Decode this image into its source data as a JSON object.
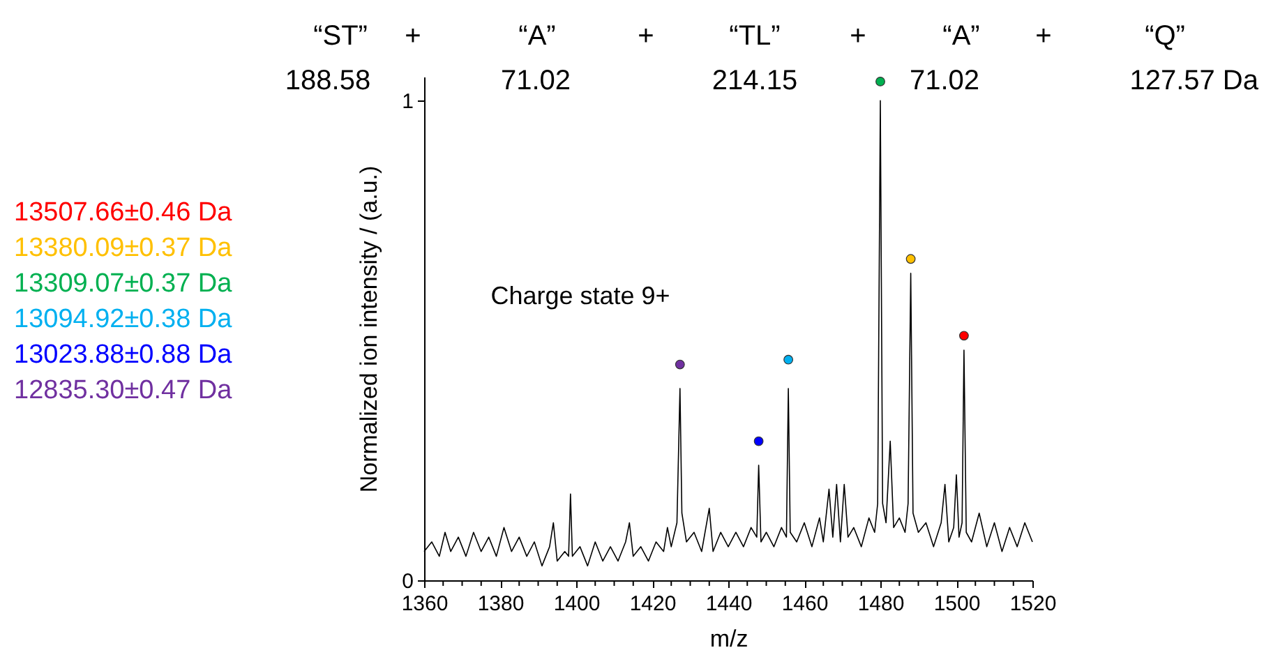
{
  "chart_data": {
    "type": "line",
    "xlabel": "m/z",
    "ylabel": "Normalized ion intensity / (a.u.)",
    "xlim": [
      1360,
      1520
    ],
    "xticks": [
      1360,
      {
        "value": 1365,
        "label": null
      },
      {
        "value": 1370,
        "label": null
      },
      {
        "value": 1375,
        "label": null
      },
      1380,
      {
        "value": 1385,
        "label": null
      },
      {
        "value": 1390,
        "label": null
      },
      {
        "value": 1395,
        "label": null
      },
      1400,
      {
        "value": 1405,
        "label": null
      },
      {
        "value": 1410,
        "label": null
      },
      {
        "value": 1415,
        "label": null
      },
      1420,
      {
        "value": 1425,
        "label": null
      },
      {
        "value": 1430,
        "label": null
      },
      {
        "value": 1435,
        "label": null
      },
      1440,
      {
        "value": 1445,
        "label": null
      },
      {
        "value": 1450,
        "label": null
      },
      {
        "value": 1455,
        "label": null
      },
      1460,
      {
        "value": 1465,
        "label": null
      },
      {
        "value": 1470,
        "label": null
      },
      {
        "value": 1475,
        "label": null
      },
      1480,
      {
        "value": 1485,
        "label": null
      },
      {
        "value": 1490,
        "label": null
      },
      {
        "value": 1495,
        "label": null
      },
      1500,
      {
        "value": 1505,
        "label": null
      },
      {
        "value": 1510,
        "label": null
      },
      {
        "value": 1515,
        "label": null
      },
      1520
    ],
    "ylim": [
      0,
      1.05
    ],
    "yticks": [
      0,
      1
    ],
    "legend": "left",
    "annotations": [
      "Charge state 9+",
      "“ST”",
      "+",
      "“A”",
      "+",
      "“TL”",
      "+",
      "“A”",
      "+",
      "“Q”",
      "188.58",
      "71.02",
      "214.15",
      "71.02",
      "127.57 Da"
    ],
    "series": [
      {
        "color": "#000000",
        "x": [
          1360,
          1362,
          1364,
          1365.5,
          1367,
          1369,
          1371,
          1373,
          1375,
          1377,
          1379,
          1381,
          1383,
          1385,
          1387,
          1389,
          1391,
          1393,
          1394,
          1395,
          1397,
          1398,
          1398.5,
          1399,
          1401,
          1403,
          1405,
          1407,
          1409,
          1411,
          1413,
          1414,
          1415,
          1417,
          1419,
          1421,
          1423,
          1424,
          1425,
          1426.5,
          1427.3,
          1427.8,
          1429,
          1431,
          1433,
          1435,
          1436,
          1438,
          1440,
          1442,
          1444,
          1446,
          1447.5,
          1448,
          1448.6,
          1450,
          1452,
          1454,
          1455.3,
          1455.8,
          1456.3,
          1458,
          1460,
          1462,
          1464,
          1465,
          1466.5,
          1467.5,
          1468.5,
          1469.5,
          1470.5,
          1471.5,
          1473,
          1475,
          1477,
          1478.5,
          1479.3,
          1480,
          1480.6,
          1481.5,
          1482.6,
          1483.5,
          1485,
          1486.5,
          1487.3,
          1488,
          1488.6,
          1490,
          1492,
          1494,
          1496,
          1497,
          1498,
          1499.3,
          1500,
          1500.7,
          1501.5,
          1502,
          1502.6,
          1504,
          1506,
          1508,
          1510,
          1512,
          1514,
          1516,
          1518,
          1520
        ],
        "values": [
          0.06,
          0.08,
          0.05,
          0.1,
          0.06,
          0.09,
          0.05,
          0.1,
          0.06,
          0.09,
          0.05,
          0.11,
          0.06,
          0.09,
          0.05,
          0.08,
          0.03,
          0.07,
          0.12,
          0.04,
          0.06,
          0.05,
          0.18,
          0.05,
          0.07,
          0.03,
          0.08,
          0.04,
          0.07,
          0.04,
          0.08,
          0.12,
          0.05,
          0.07,
          0.04,
          0.08,
          0.06,
          0.11,
          0.07,
          0.12,
          0.4,
          0.14,
          0.08,
          0.1,
          0.06,
          0.15,
          0.06,
          0.1,
          0.07,
          0.1,
          0.07,
          0.11,
          0.09,
          0.24,
          0.08,
          0.1,
          0.07,
          0.11,
          0.09,
          0.4,
          0.1,
          0.08,
          0.12,
          0.07,
          0.13,
          0.08,
          0.19,
          0.09,
          0.2,
          0.08,
          0.2,
          0.09,
          0.11,
          0.07,
          0.13,
          0.1,
          0.16,
          1.0,
          0.16,
          0.12,
          0.29,
          0.11,
          0.13,
          0.1,
          0.16,
          0.64,
          0.14,
          0.1,
          0.12,
          0.07,
          0.12,
          0.2,
          0.08,
          0.11,
          0.22,
          0.09,
          0.12,
          0.48,
          0.1,
          0.08,
          0.14,
          0.07,
          0.12,
          0.06,
          0.11,
          0.07,
          0.12,
          0.08
        ]
      },
      {
        "type": "scatter",
        "marker": "circle",
        "name": "13507.66±0.46 Da",
        "color": "#ff0000",
        "x": [
          1502
        ],
        "values": [
          0.51
        ]
      },
      {
        "type": "scatter",
        "marker": "circle",
        "name": "13380.09±0.37 Da",
        "color": "#ffc000",
        "x": [
          1488
        ],
        "values": [
          0.67
        ]
      },
      {
        "type": "scatter",
        "marker": "circle",
        "name": "13309.07±0.37 Da",
        "color": "#00b050",
        "x": [
          1480
        ],
        "values": [
          1.04
        ]
      },
      {
        "type": "scatter",
        "marker": "circle",
        "name": "13094.92±0.38 Da",
        "color": "#00b0f0",
        "x": [
          1455.8
        ],
        "values": [
          0.46
        ]
      },
      {
        "type": "scatter",
        "marker": "circle",
        "name": "13023.88±0.88 Da",
        "color": "#0000ff",
        "x": [
          1448
        ],
        "values": [
          0.29
        ]
      },
      {
        "type": "scatter",
        "marker": "circle",
        "name": "12835.30±0.47 Da",
        "color": "#7030a0",
        "x": [
          1427.3
        ],
        "values": [
          0.45
        ]
      }
    ]
  }
}
